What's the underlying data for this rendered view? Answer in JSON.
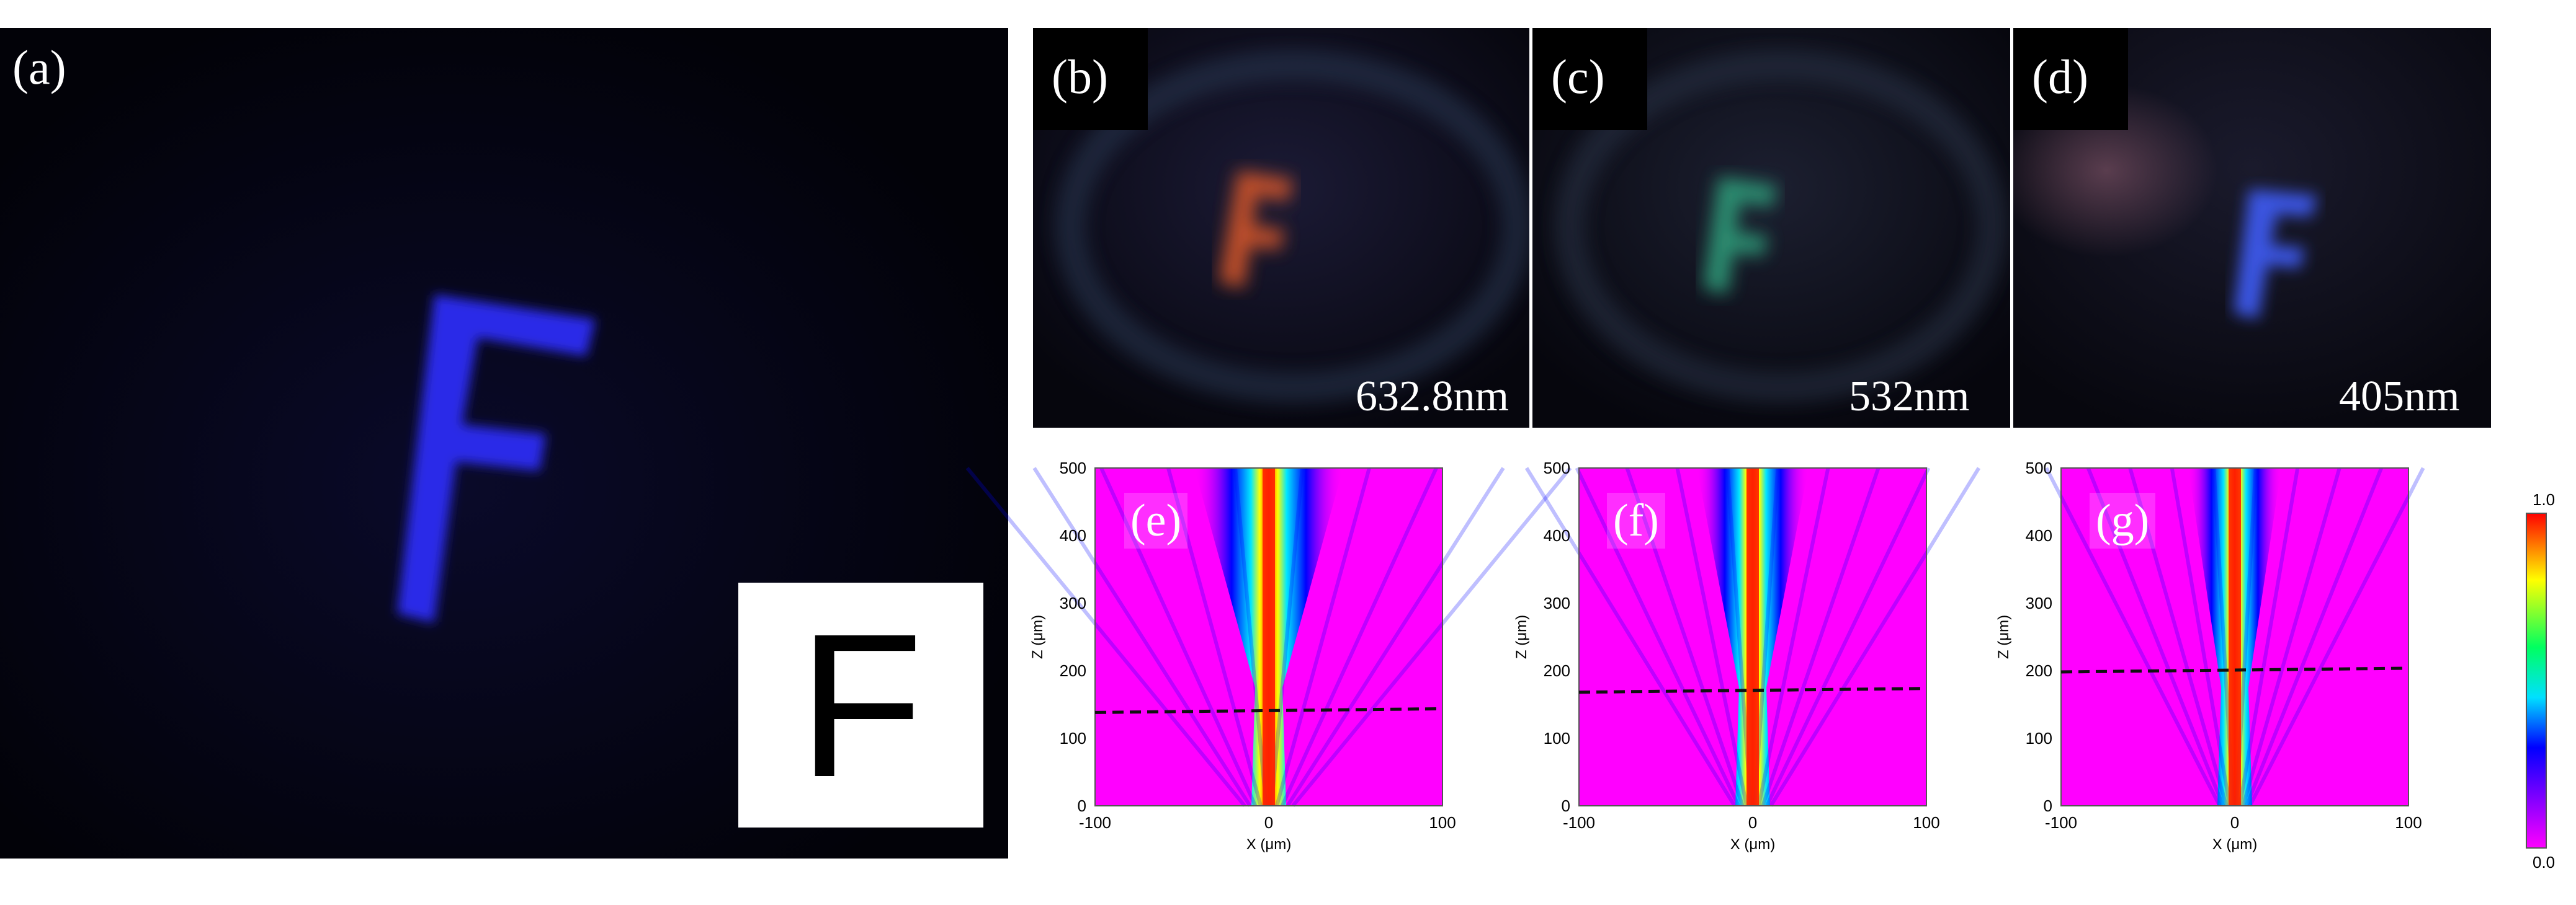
{
  "panels": {
    "a": {
      "label": "(a)",
      "inset_letter": "F",
      "captured_letter": "F"
    },
    "b": {
      "label": "(b)",
      "wavelength": "632.8nm",
      "captured_letter": "F"
    },
    "c": {
      "label": "(c)",
      "wavelength": "532nm",
      "captured_letter": "F"
    },
    "d": {
      "label": "(d)",
      "wavelength": "405nm",
      "captured_letter": "F"
    },
    "e": {
      "label": "(e)"
    },
    "f": {
      "label": "(f)"
    },
    "g": {
      "label": "(g)"
    }
  },
  "plots": {
    "ylabel": "Z (μm)",
    "xlabel": "X (μm)",
    "y_ticks": [
      "0",
      "100",
      "200",
      "300",
      "400",
      "500"
    ],
    "x_ticks": [
      "-100",
      "0",
      "100"
    ],
    "ylim": [
      0,
      500
    ],
    "xlim": [
      -100,
      100
    ],
    "focal_lines_um": [
      140,
      170,
      200
    ],
    "colorbar": {
      "max_label": "1.0",
      "min_label": "0.0"
    },
    "colors": {
      "background": "#ff00ff",
      "low": "#0000ff",
      "mid": "#00ffff",
      "high": "#ff2000"
    }
  }
}
